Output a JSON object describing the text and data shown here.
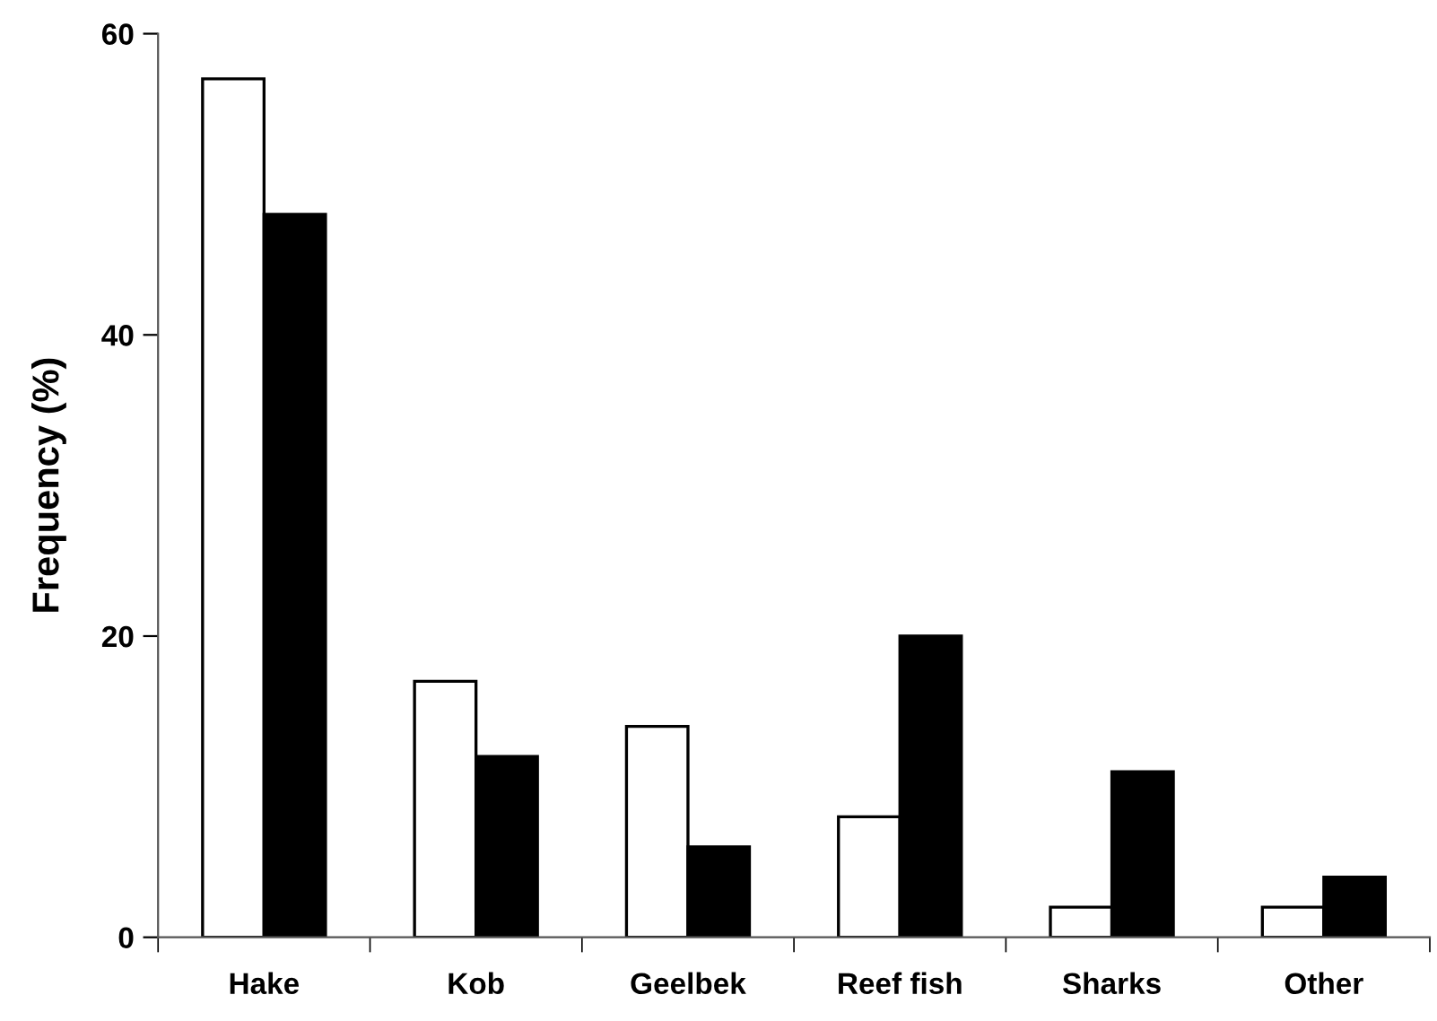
{
  "chart_data": {
    "type": "bar",
    "ylabel": "Frequency (%)",
    "categories": [
      "Hake",
      "Kob",
      "Geelbek",
      "Reef fish",
      "Sharks",
      "Other"
    ],
    "series": [
      {
        "color": "#ffffff",
        "values": [
          57,
          17,
          14,
          8,
          2,
          2
        ]
      },
      {
        "color": "#000000",
        "values": [
          48,
          12,
          6,
          20,
          11,
          4
        ]
      }
    ],
    "ylim": [
      0,
      60
    ],
    "yticks": [
      0,
      20,
      40,
      60
    ],
    "grid": false
  }
}
